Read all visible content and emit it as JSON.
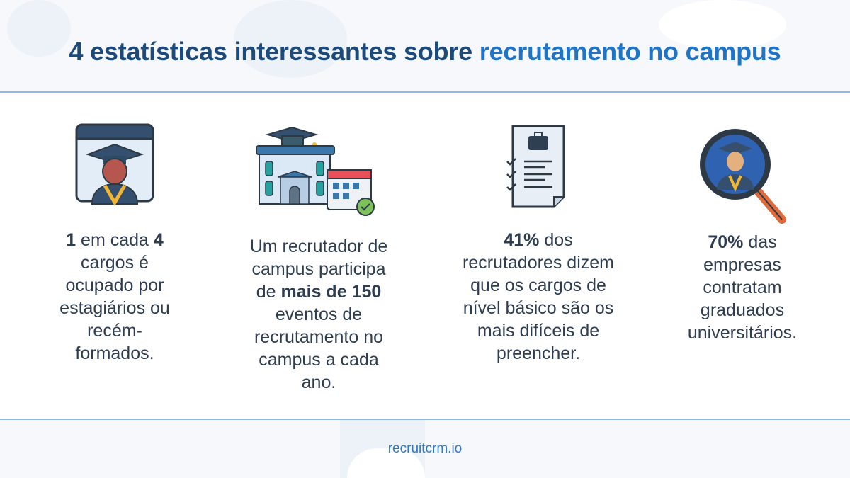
{
  "title": {
    "prefix": "4 estatísticas interessantes sobre ",
    "accent": "recrutamento no campus"
  },
  "colors": {
    "title": "#1c4a7a",
    "accent": "#1f74c8",
    "text": "#2e3d4f",
    "rule": "#8fb6e6"
  },
  "stats": [
    {
      "icon": "graduate-window-icon",
      "lines": [
        [
          {
            "t": "1",
            "b": true
          },
          {
            "t": " em cada "
          },
          {
            "t": "4",
            "b": true
          }
        ],
        [
          {
            "t": "cargos é"
          }
        ],
        [
          {
            "t": "ocupado por"
          }
        ],
        [
          {
            "t": "estagiários ou"
          }
        ],
        [
          {
            "t": "recém-"
          }
        ],
        [
          {
            "t": "formados."
          }
        ]
      ]
    },
    {
      "icon": "university-calendar-icon",
      "lines": [
        [
          {
            "t": "Um recrutador de"
          }
        ],
        [
          {
            "t": "campus participa"
          }
        ],
        [
          {
            "t": "de "
          },
          {
            "t": "mais de 150",
            "b": true
          }
        ],
        [
          {
            "t": "eventos de"
          }
        ],
        [
          {
            "t": "recrutamento no"
          }
        ],
        [
          {
            "t": "campus a cada"
          }
        ],
        [
          {
            "t": "ano."
          }
        ]
      ]
    },
    {
      "icon": "job-checklist-icon",
      "lines": [
        [
          {
            "t": "41%",
            "b": true
          },
          {
            "t": " dos"
          }
        ],
        [
          {
            "t": "recrutadores dizem"
          }
        ],
        [
          {
            "t": "que os cargos de"
          }
        ],
        [
          {
            "t": "nível básico são os"
          }
        ],
        [
          {
            "t": "mais difíceis de"
          }
        ],
        [
          {
            "t": "preencher."
          }
        ]
      ]
    },
    {
      "icon": "graduate-magnifier-icon",
      "lines": [
        [
          {
            "t": "70%",
            "b": true
          },
          {
            "t": " das"
          }
        ],
        [
          {
            "t": "empresas"
          }
        ],
        [
          {
            "t": "contratam"
          }
        ],
        [
          {
            "t": "graduados"
          }
        ],
        [
          {
            "t": "universitários."
          }
        ]
      ]
    }
  ],
  "footer": "recruitcrm.io"
}
